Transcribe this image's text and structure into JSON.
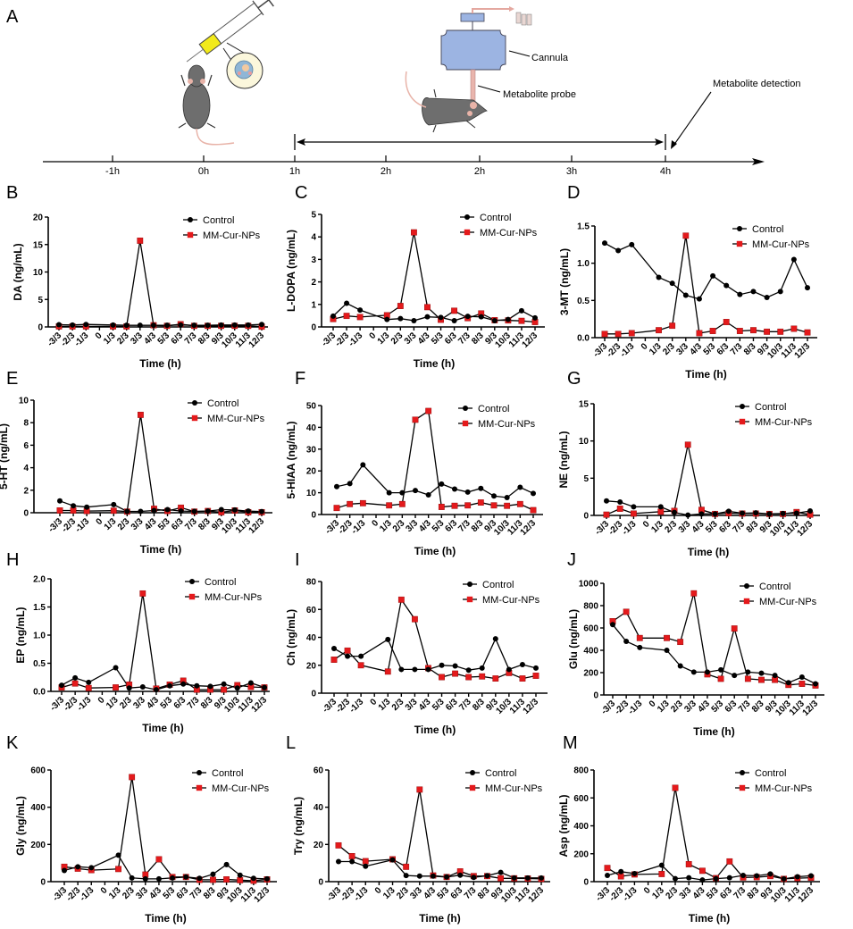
{
  "figure": {
    "panel_a": {
      "letter": "A",
      "timeline_ticks": [
        "-1h",
        "0h",
        "1h",
        "2h",
        "2h",
        "3h",
        "4h"
      ],
      "labels": {
        "cannula": "Cannula",
        "probe": "Metabolite probe",
        "detection": "Metabolite detection"
      }
    },
    "colors": {
      "control": "#000000",
      "treated": "#e41a1c"
    }
  },
  "chart_data": [
    {
      "id": "B",
      "type": "line",
      "ylabel": "DA (ng/mL)",
      "xlabel": "Time (h)",
      "categories": [
        "-3/3",
        "-2/3",
        "-1/3",
        "0",
        "1/3",
        "2/3",
        "3/3",
        "4/3",
        "5/3",
        "6/3",
        "7/3",
        "8/3",
        "9/3",
        "10/3",
        "11/3",
        "12/3"
      ],
      "ylim": [
        0,
        20
      ],
      "yticks": [
        "0",
        "5",
        "10",
        "15",
        "20"
      ],
      "legend": [
        "Control",
        "MM-Cur-NPs"
      ],
      "legend_position": "top-right",
      "series": [
        {
          "name": "Control",
          "values": [
            0.4,
            0.35,
            0.45,
            null,
            0.35,
            0.3,
            0.3,
            0.3,
            0.3,
            0.35,
            0.3,
            0.3,
            0.35,
            0.35,
            0.35,
            0.45
          ]
        },
        {
          "name": "MM-Cur-NPs",
          "values": [
            0.1,
            0.1,
            0.1,
            null,
            0.1,
            0.1,
            15.7,
            0.3,
            0.2,
            0.5,
            0.2,
            0.2,
            0.2,
            0.2,
            0.2,
            0.05
          ]
        }
      ]
    },
    {
      "id": "C",
      "type": "line",
      "ylabel": "L-DOPA (ng/mL)",
      "xlabel": "Time (h)",
      "categories": [
        "-3/3",
        "-2/3",
        "-1/3",
        "0",
        "1/3",
        "2/3",
        "3/3",
        "4/3",
        "5/3",
        "6/3",
        "7/3",
        "8/3",
        "9/3",
        "10/3",
        "11/3",
        "12/3"
      ],
      "ylim": [
        0,
        5
      ],
      "yticks": [
        "0",
        "1",
        "2",
        "3",
        "4",
        "5"
      ],
      "legend": [
        "Control",
        "MM-Cur-NPs"
      ],
      "legend_position": "top-right",
      "series": [
        {
          "name": "Control",
          "values": [
            0.48,
            1.05,
            0.75,
            null,
            0.33,
            0.37,
            0.28,
            0.45,
            0.42,
            0.28,
            0.47,
            0.45,
            0.28,
            0.33,
            0.72,
            0.4
          ]
        },
        {
          "name": "MM-Cur-NPs",
          "values": [
            0.35,
            0.49,
            0.44,
            null,
            0.52,
            0.93,
            4.2,
            0.88,
            0.32,
            0.72,
            0.39,
            0.6,
            0.3,
            0.29,
            0.27,
            0.22
          ]
        }
      ]
    },
    {
      "id": "D",
      "type": "line",
      "ylabel": "3-MT (ng/mL)",
      "xlabel": "Time (h)",
      "categories": [
        "-3/3",
        "-2/3",
        "-1/3",
        "0",
        "1/3",
        "2/3",
        "3/3",
        "4/3",
        "5/3",
        "6/3",
        "7/3",
        "8/3",
        "9/3",
        "10/3",
        "11/3",
        "12/3"
      ],
      "ylim": [
        0,
        1.5
      ],
      "yticks": [
        "0.0",
        "0.5",
        "1.0",
        "1.5"
      ],
      "legend": [
        "Control",
        "MM-Cur-NPs"
      ],
      "legend_position": "top-right",
      "series": [
        {
          "name": "Control",
          "values": [
            1.27,
            1.17,
            1.25,
            null,
            0.81,
            0.73,
            0.57,
            0.52,
            0.83,
            0.7,
            0.58,
            0.62,
            0.54,
            0.62,
            1.05,
            0.67
          ]
        },
        {
          "name": "MM-Cur-NPs",
          "values": [
            0.05,
            0.05,
            0.06,
            null,
            0.1,
            0.16,
            1.37,
            0.06,
            0.09,
            0.21,
            0.09,
            0.1,
            0.08,
            0.08,
            0.12,
            0.07
          ]
        }
      ]
    },
    {
      "id": "E",
      "type": "line",
      "ylabel": "5-HT (ng/mL)",
      "xlabel": "Time (h)",
      "categories": [
        "-3/3",
        "-2/3",
        "-1/3",
        "0",
        "1/3",
        "2/3",
        "3/3",
        "4/3",
        "5/3",
        "6/3",
        "7/3",
        "8/3",
        "9/3",
        "10/3",
        "11/3",
        "12/3"
      ],
      "ylim": [
        0,
        10
      ],
      "yticks": [
        "0",
        "2",
        "4",
        "6",
        "8",
        "10"
      ],
      "legend": [
        "Control",
        "MM-Cur-NPs"
      ],
      "legend_position": "top-right",
      "series": [
        {
          "name": "Control",
          "values": [
            1.05,
            0.62,
            0.5,
            null,
            0.72,
            0.12,
            0.12,
            0.2,
            0.28,
            0.15,
            0.12,
            0.15,
            0.28,
            0.25,
            0.15,
            0.1
          ]
        },
        {
          "name": "MM-Cur-NPs",
          "values": [
            0.2,
            0.2,
            0.15,
            null,
            0.18,
            0.1,
            8.7,
            0.35,
            0.15,
            0.45,
            0.1,
            0.15,
            0.05,
            0.2,
            0.05,
            0.05
          ]
        }
      ]
    },
    {
      "id": "F",
      "type": "line",
      "ylabel": "5-HIAA (ng/mL)",
      "xlabel": "Time (h)",
      "categories": [
        "-3/3",
        "-2/3",
        "-1/3",
        "0",
        "1/3",
        "2/3",
        "3/3",
        "4/3",
        "5/3",
        "6/3",
        "7/3",
        "8/3",
        "9/3",
        "10/3",
        "11/3",
        "12/3"
      ],
      "ylim": [
        0,
        50
      ],
      "yticks": [
        "0",
        "10",
        "20",
        "30",
        "40",
        "50"
      ],
      "legend": [
        "Control",
        "MM-Cur-NPs"
      ],
      "legend_position": "top-right",
      "series": [
        {
          "name": "Control",
          "values": [
            12.8,
            14.2,
            22.8,
            null,
            10,
            10,
            11,
            9,
            14,
            11.7,
            10.3,
            12,
            8.5,
            7.8,
            12.5,
            9.7
          ]
        },
        {
          "name": "MM-Cur-NPs",
          "values": [
            3,
            4.8,
            5.2,
            null,
            4.2,
            4.8,
            43.5,
            47.5,
            3.5,
            4,
            4.2,
            5.5,
            4.2,
            4,
            4.8,
            2
          ]
        }
      ]
    },
    {
      "id": "G",
      "type": "line",
      "ylabel": "NE (ng/mL)",
      "xlabel": "Time (h)",
      "categories": [
        "-3/3",
        "-2/3",
        "-1/3",
        "0",
        "1/3",
        "2/3",
        "3/3",
        "4/3",
        "5/3",
        "6/3",
        "7/3",
        "8/3",
        "9/3",
        "10/3",
        "11/3",
        "12/3"
      ],
      "ylim": [
        0,
        15
      ],
      "yticks": [
        "0",
        "5",
        "10",
        "15"
      ],
      "legend": [
        "Control",
        "MM-Cur-NPs"
      ],
      "legend_position": "top-right",
      "series": [
        {
          "name": "Control",
          "values": [
            1.95,
            1.8,
            1.15,
            null,
            1.15,
            0.4,
            0.05,
            0.2,
            0.2,
            0.55,
            0.3,
            0.35,
            0.2,
            0.25,
            0.3,
            0.6
          ]
        },
        {
          "name": "MM-Cur-NPs",
          "values": [
            0.1,
            0.9,
            0.25,
            null,
            0.5,
            0.6,
            9.5,
            0.75,
            0.2,
            0.3,
            0.25,
            0.25,
            0.2,
            0.2,
            0.45,
            0.1
          ]
        }
      ]
    },
    {
      "id": "H",
      "type": "line",
      "ylabel": "EP (ng/mL)",
      "xlabel": "Time (h)",
      "categories": [
        "-3/3",
        "-2/3",
        "-1/3",
        "0",
        "1/3",
        "2/3",
        "3/3",
        "4/3",
        "5/3",
        "6/3",
        "7/3",
        "8/3",
        "9/3",
        "10/3",
        "11/3",
        "12/3"
      ],
      "ylim": [
        0,
        2.0
      ],
      "yticks": [
        "0.0",
        "0.5",
        "1.0",
        "1.5",
        "2.0"
      ],
      "legend": [
        "Control",
        "MM-Cur-NPs"
      ],
      "legend_position": "top-right",
      "series": [
        {
          "name": "Control",
          "values": [
            0.11,
            0.24,
            0.16,
            null,
            0.42,
            0.06,
            0.08,
            0.03,
            0.1,
            0.13,
            0.1,
            0.09,
            0.13,
            0.06,
            0.15,
            0.07
          ]
        },
        {
          "name": "MM-Cur-NPs",
          "values": [
            0.07,
            0.14,
            0.06,
            null,
            0.07,
            0.12,
            1.74,
            0.05,
            0.12,
            0.19,
            0.03,
            0.03,
            0.03,
            0.11,
            0.08,
            0.07
          ]
        }
      ]
    },
    {
      "id": "I",
      "type": "line",
      "ylabel": "Ch (ng/mL)",
      "xlabel": "Time (h)",
      "categories": [
        "-3/3",
        "-2/3",
        "-1/3",
        "0",
        "1/3",
        "2/3",
        "3/3",
        "4/3",
        "5/3",
        "6/3",
        "7/3",
        "8/3",
        "9/3",
        "10/3",
        "11/3",
        "12/3"
      ],
      "ylim": [
        0,
        80
      ],
      "yticks": [
        "0",
        "20",
        "40",
        "60",
        "80"
      ],
      "legend": [
        "Control",
        "MM-Cur-NPs"
      ],
      "legend_position": "top-right",
      "series": [
        {
          "name": "Control",
          "values": [
            32,
            26.5,
            26.5,
            null,
            38.5,
            17,
            17,
            17,
            20,
            19.5,
            16.5,
            18,
            39,
            17,
            20.5,
            18
          ]
        },
        {
          "name": "MM-Cur-NPs",
          "values": [
            24,
            30.5,
            20,
            null,
            15.5,
            67,
            53,
            18,
            11.5,
            14,
            11.5,
            12,
            10.5,
            14.5,
            10.5,
            12.5
          ]
        }
      ]
    },
    {
      "id": "J",
      "type": "line",
      "ylabel": "Glu (ng/mL)",
      "xlabel": "Time (h)",
      "categories": [
        "-3/3",
        "-2/3",
        "-1/3",
        "0",
        "1/3",
        "2/3",
        "3/3",
        "4/3",
        "5/3",
        "6/3",
        "7/3",
        "8/3",
        "9/3",
        "10/3",
        "11/3",
        "12/3"
      ],
      "ylim": [
        0,
        1000
      ],
      "yticks": [
        "0",
        "200",
        "400",
        "600",
        "800",
        "1000"
      ],
      "legend": [
        "Control",
        "MM-Cur-NPs"
      ],
      "legend_position": "top-right",
      "series": [
        {
          "name": "Control",
          "values": [
            630,
            480,
            425,
            null,
            400,
            260,
            205,
            205,
            225,
            175,
            205,
            195,
            175,
            110,
            160,
            100
          ]
        },
        {
          "name": "MM-Cur-NPs",
          "values": [
            660,
            745,
            510,
            null,
            510,
            475,
            910,
            185,
            145,
            595,
            145,
            135,
            135,
            90,
            100,
            85
          ]
        }
      ]
    },
    {
      "id": "K",
      "type": "line",
      "ylabel": "Gly (ng/mL)",
      "xlabel": "Time (h)",
      "categories": [
        "-3/3",
        "-2/3",
        "-1/3",
        "0",
        "1/3",
        "2/3",
        "3/3",
        "4/3",
        "5/3",
        "6/3",
        "7/3",
        "8/3",
        "9/3",
        "10/3",
        "11/3",
        "12/3"
      ],
      "ylim": [
        0,
        600
      ],
      "yticks": [
        "0",
        "200",
        "400",
        "600"
      ],
      "legend": [
        "Control",
        "MM-Cur-NPs"
      ],
      "legend_position": "top-right",
      "series": [
        {
          "name": "Control",
          "values": [
            60,
            80,
            75,
            null,
            142,
            20,
            15,
            15,
            20,
            25,
            18,
            40,
            92,
            35,
            18,
            15
          ]
        },
        {
          "name": "MM-Cur-NPs",
          "values": [
            80,
            70,
            62,
            null,
            68,
            562,
            38,
            120,
            25,
            25,
            10,
            10,
            12,
            8,
            5,
            12
          ]
        }
      ]
    },
    {
      "id": "L",
      "type": "line",
      "ylabel": "Try (ng/mL)",
      "xlabel": "Time (h)",
      "categories": [
        "-3/3",
        "-2/3",
        "-1/3",
        "0",
        "1/3",
        "2/3",
        "3/3",
        "4/3",
        "5/3",
        "6/3",
        "7/3",
        "8/3",
        "9/3",
        "10/3",
        "11/3",
        "12/3"
      ],
      "ylim": [
        0,
        60
      ],
      "yticks": [
        "0",
        "20",
        "40",
        "60"
      ],
      "legend": [
        "Control",
        "MM-Cur-NPs"
      ],
      "legend_position": "top-right",
      "series": [
        {
          "name": "Control",
          "values": [
            10.8,
            10.8,
            8.3,
            null,
            11.7,
            3.3,
            3,
            3,
            2.5,
            3.5,
            2.3,
            3.2,
            5,
            2,
            2,
            2
          ]
        },
        {
          "name": "MM-Cur-NPs",
          "values": [
            19.5,
            13.7,
            11,
            null,
            12,
            8,
            49.5,
            3.3,
            2.5,
            5.5,
            3,
            3,
            1.8,
            1.8,
            1.7,
            1.5
          ]
        }
      ]
    },
    {
      "id": "M",
      "type": "line",
      "ylabel": "Asp (ng/mL)",
      "xlabel": "Time (h)",
      "categories": [
        "-3/3",
        "-2/3",
        "-1/3",
        "0",
        "1/3",
        "2/3",
        "3/3",
        "4/3",
        "5/3",
        "6/3",
        "7/3",
        "8/3",
        "9/3",
        "10/3",
        "11/3",
        "12/3"
      ],
      "ylim": [
        0,
        800
      ],
      "yticks": [
        "0",
        "200",
        "400",
        "600",
        "800"
      ],
      "legend": [
        "Control",
        "MM-Cur-NPs"
      ],
      "legend_position": "top-right",
      "series": [
        {
          "name": "Control",
          "values": [
            45,
            72,
            58,
            null,
            118,
            22,
            28,
            12,
            22,
            28,
            45,
            42,
            55,
            20,
            35,
            42
          ]
        },
        {
          "name": "MM-Cur-NPs",
          "values": [
            98,
            38,
            52,
            null,
            55,
            672,
            125,
            78,
            25,
            145,
            30,
            32,
            40,
            20,
            25,
            28
          ]
        }
      ]
    }
  ]
}
